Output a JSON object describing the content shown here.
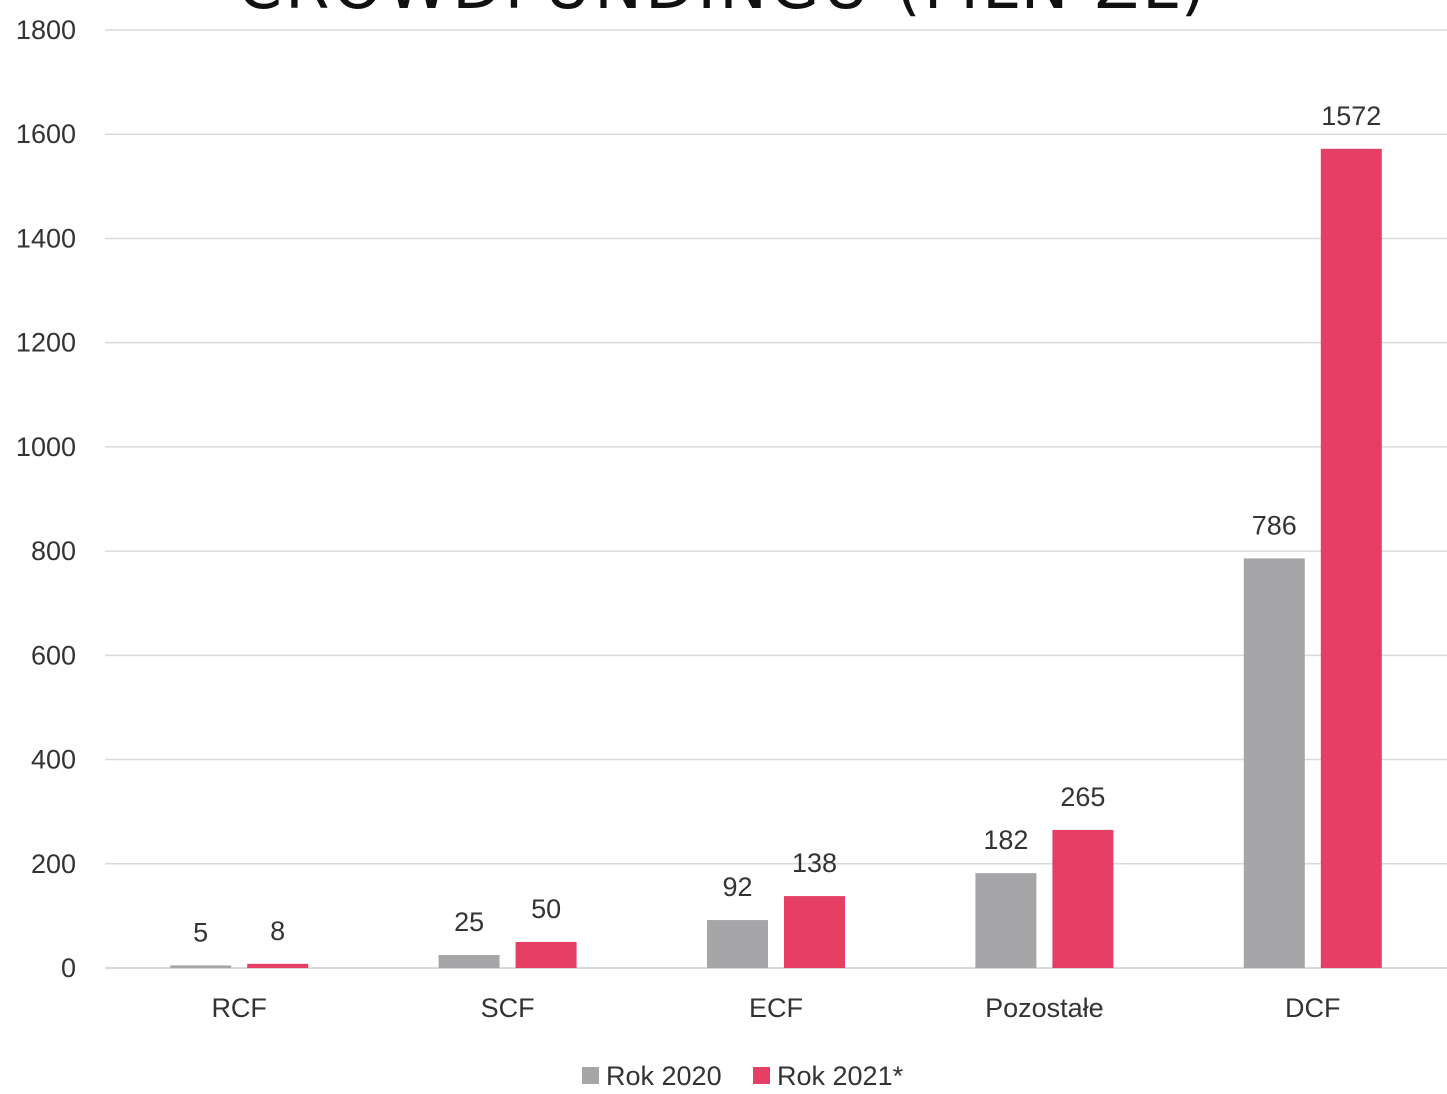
{
  "chart_data": {
    "type": "bar",
    "title": "CROWDFUNDINGU (MLN ZŁ)",
    "categories": [
      "RCF",
      "SCF",
      "ECF",
      "Pozostałe",
      "DCF"
    ],
    "series": [
      {
        "name": "Rok 2020",
        "values": [
          5,
          25,
          92,
          182,
          786
        ],
        "color": "#a6a6a9"
      },
      {
        "name": "Rok 2021*",
        "values": [
          8,
          50,
          138,
          265,
          1572
        ],
        "color": "#e63f65"
      }
    ],
    "ylim": [
      0,
      1800
    ],
    "yticks": [
      0,
      200,
      400,
      600,
      800,
      1000,
      1200,
      1400,
      1600,
      1800
    ],
    "grid": true,
    "legend_position": "bottom-center",
    "xlabel": "",
    "ylabel": ""
  }
}
